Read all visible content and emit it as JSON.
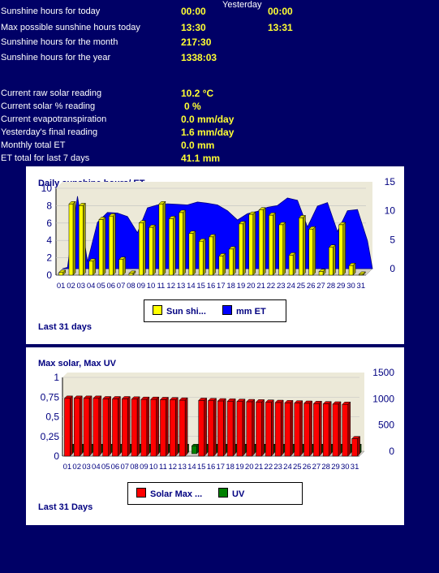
{
  "header": {
    "yesterday_label": "Yesterday"
  },
  "stats": [
    {
      "label": "Sunshine hours for today",
      "value": "00:00",
      "yesterday": "00:00"
    },
    {
      "label": "Max possible sunshine hours today",
      "value": "13:30",
      "yesterday": "13:31"
    },
    {
      "label": "Sunshine hours for the month",
      "value": "217:30"
    },
    {
      "label": "Sunshine hours for the year",
      "value": "1338:03"
    }
  ],
  "readings": [
    {
      "label": "Current raw solar reading",
      "value": "10.2 °C"
    },
    {
      "label": "Current solar % reading",
      "value": "0 %"
    },
    {
      "label": "Current evapotranspiration",
      "value": "0.0 mm/day"
    },
    {
      "label": "Yesterday's final reading",
      "value": "1.6 mm/day"
    },
    {
      "label": "Monthly total ET",
      "value": "0.0 mm"
    },
    {
      "label": "ET total for last 7 days",
      "value": "41.1 mm"
    }
  ],
  "colors": {
    "background": "#000066",
    "sun": "#ffff00",
    "et": "#0000ff",
    "solar": "#ff0000",
    "uv": "#008000",
    "plot": "#ece9d8"
  },
  "chart_data": [
    {
      "type": "bar",
      "title": "Daily sunshine hours/ ET",
      "footer": "Last 31 days",
      "categories": [
        "01",
        "02",
        "03",
        "04",
        "05",
        "06",
        "07",
        "08",
        "09",
        "10",
        "11",
        "12",
        "13",
        "14",
        "15",
        "16",
        "17",
        "18",
        "19",
        "20",
        "21",
        "22",
        "23",
        "24",
        "25",
        "26",
        "27",
        "28",
        "29",
        "30",
        "31"
      ],
      "y_ticks": [
        "0",
        "2",
        "4",
        "6",
        "8",
        "10"
      ],
      "y2_ticks": [
        "0",
        "5",
        "10",
        "15"
      ],
      "ylim": [
        0,
        10
      ],
      "y2lim": [
        0,
        15
      ],
      "series": [
        {
          "name": "Sun shi...",
          "type": "bar",
          "axis": "left",
          "values": [
            0.3,
            8.2,
            8.0,
            1.6,
            6.4,
            6.8,
            1.8,
            0.2,
            6.0,
            5.5,
            8.2,
            6.5,
            7.2,
            4.8,
            3.9,
            4.4,
            2.2,
            3.0,
            5.9,
            7.0,
            7.5,
            6.9,
            5.8,
            2.3,
            6.6,
            5.3,
            0.4,
            3.2,
            5.8,
            1.1,
            0.1
          ]
        },
        {
          "name": "mm ET",
          "type": "area",
          "axis": "right",
          "values": [
            0.2,
            12.5,
            1.2,
            8.0,
            9.7,
            9.6,
            9.0,
            6.2,
            10.5,
            11.0,
            11.2,
            11.1,
            11.0,
            11.5,
            11.3,
            11.0,
            10.0,
            8.4,
            9.5,
            9.9,
            10.6,
            10.9,
            12.2,
            11.8,
            7.2,
            10.8,
            11.4,
            6.4,
            10.0,
            10.2,
            4.8
          ]
        }
      ]
    },
    {
      "type": "bar",
      "title": "Max solar, Max UV",
      "footer": "Last 31 Days",
      "categories": [
        "01",
        "02",
        "03",
        "04",
        "05",
        "06",
        "07",
        "08",
        "09",
        "10",
        "11",
        "12",
        "13",
        "14",
        "15",
        "16",
        "17",
        "18",
        "19",
        "20",
        "21",
        "22",
        "23",
        "24",
        "25",
        "26",
        "27",
        "28",
        "29",
        "30",
        "31"
      ],
      "y_ticks": [
        "0",
        "0,25",
        "0,5",
        "0,75",
        "1"
      ],
      "y2_ticks": [
        "0",
        "500",
        "1000",
        "1500"
      ],
      "ylim": [
        0,
        1
      ],
      "y2lim": [
        0,
        1500
      ],
      "series": [
        {
          "name": "Solar Max ...",
          "type": "bar",
          "axis": "right",
          "values": [
            1100,
            1100,
            1100,
            1100,
            1090,
            1090,
            1090,
            1085,
            1080,
            1080,
            1075,
            1070,
            1065,
            null,
            1060,
            1055,
            1050,
            1045,
            1040,
            1035,
            1030,
            1025,
            1020,
            1015,
            1010,
            1005,
            1000,
            995,
            990,
            985,
            330
          ]
        },
        {
          "name": "UV",
          "type": "bar",
          "axis": "left",
          "values": [
            0.1,
            0.1,
            0.1,
            0.1,
            0.1,
            0.1,
            0.1,
            0.1,
            0.1,
            0.1,
            0.1,
            0.1,
            0.1,
            0.1,
            0.1,
            0.1,
            0.1,
            0.1,
            0.1,
            0.1,
            0.1,
            0.1,
            0.1,
            0.1,
            0.1,
            0.1,
            0.1,
            0.1,
            0.1,
            0.1,
            0.1
          ]
        }
      ]
    }
  ]
}
